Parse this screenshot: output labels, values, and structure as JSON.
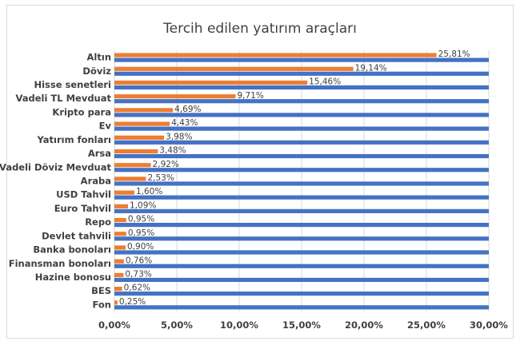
{
  "chart_data": {
    "type": "bar",
    "orientation": "horizontal",
    "title": "Tercih edilen yatırım araçları",
    "xlabel": "",
    "ylabel": "",
    "xlim": [
      0,
      30
    ],
    "x_ticks": [
      "0,00%",
      "5,00%",
      "10,00%",
      "15,00%",
      "20,00%",
      "25,00%",
      "30,00%"
    ],
    "grid": true,
    "categories": [
      "Altın",
      "Döviz",
      "Hisse senetleri",
      "Vadeli TL Mevduat",
      "Kripto para",
      "Ev",
      "Yatırım fonları",
      "Arsa",
      "Vadeli Döviz Mevduat",
      "Araba",
      "USD Tahvil",
      "Euro Tahvil",
      "Repo",
      "Devlet tahvili",
      "Banka bonoları",
      "Finansman bonoları",
      "Hazine bonosu",
      "BES",
      "Fon"
    ],
    "series": [
      {
        "color": "#ed7d31",
        "values": [
          25.81,
          19.14,
          15.46,
          9.71,
          4.69,
          4.43,
          3.98,
          3.48,
          2.92,
          2.53,
          1.6,
          1.09,
          0.95,
          0.95,
          0.9,
          0.76,
          0.73,
          0.62,
          0.25
        ],
        "data_labels": [
          "25,81%",
          "19,14%",
          "15,46%",
          "9,71%",
          "4,69%",
          "4,43%",
          "3,98%",
          "3,48%",
          "2,92%",
          "2,53%",
          "1,60%",
          "1,09%",
          "0,95%",
          "0,95%",
          "0,90%",
          "0,76%",
          "0,73%",
          "0,62%",
          "0,25%"
        ]
      },
      {
        "color": "#4472c4",
        "values": [
          30,
          30,
          30,
          30,
          30,
          30,
          30,
          30,
          30,
          30,
          30,
          30,
          30,
          30,
          30,
          30,
          30,
          30,
          30
        ]
      }
    ]
  }
}
